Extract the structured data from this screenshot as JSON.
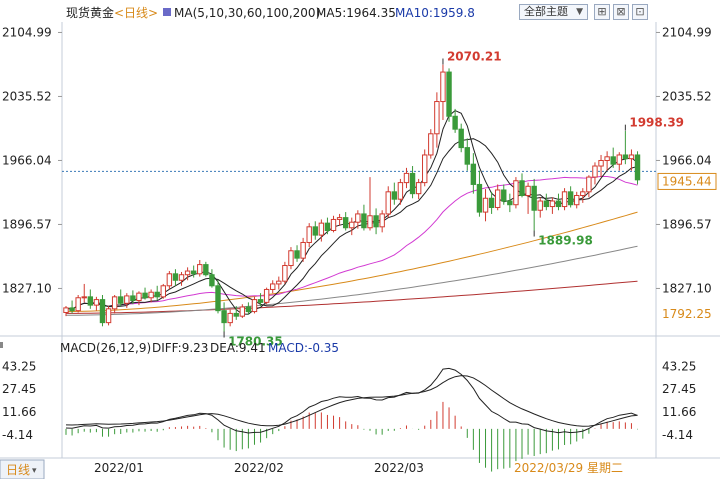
{
  "header": {
    "instrument": "现货黄金",
    "period": "<日线>",
    "ma_params": "MA(5,10,30,60,100,200)",
    "ma5": "MA5:1964.35",
    "ma10": "MA10:1959.8",
    "theme_button": "全部主题"
  },
  "macd_header": {
    "params": "MACD(26,12,9)",
    "diff": "DIFF:9.23",
    "dea": "DEA:9.41",
    "macd": "MACD:-0.35"
  },
  "footer": {
    "period_tab": "日线",
    "date_labels": [
      "2022/01",
      "2022/02",
      "2022/03"
    ],
    "current_date": "2022/03/29 星期二"
  },
  "colors": {
    "up": "#d23b30",
    "down": "#3a9a3a",
    "ma5": "#222222",
    "ma10": "#222222",
    "ma30": "#d23ad2",
    "ma60": "#d88a1a",
    "ma100": "#888888",
    "ma200": "#b03030",
    "accent_blue": "#1a3aa8"
  },
  "chart_data": {
    "type": "candlestick",
    "price_axis": {
      "ticks": [
        "2104.99",
        "2035.52",
        "1966.04",
        "1896.57",
        "1827.10"
      ],
      "ylim": [
        1782,
        2112
      ]
    },
    "last_price": "1945.44",
    "lowest_visible": "1792.25",
    "annotations": [
      {
        "label": "2070.21",
        "index": 62,
        "value": 2070.21,
        "type": "high"
      },
      {
        "label": "1998.39",
        "index": 92,
        "value": 1998.39,
        "type": "high"
      },
      {
        "label": "1889.98",
        "index": 77,
        "value": 1889.98,
        "type": "low"
      },
      {
        "label": "1780.35",
        "index": 26,
        "value": 1780.35,
        "type": "low"
      }
    ],
    "candles": [
      [
        1801,
        1808,
        1797,
        1806
      ],
      [
        1806,
        1814,
        1800,
        1803
      ],
      [
        1803,
        1820,
        1801,
        1817
      ],
      [
        1817,
        1832,
        1812,
        1818
      ],
      [
        1818,
        1826,
        1805,
        1809
      ],
      [
        1809,
        1818,
        1803,
        1815
      ],
      [
        1815,
        1820,
        1786,
        1790
      ],
      [
        1790,
        1808,
        1787,
        1805
      ],
      [
        1805,
        1820,
        1800,
        1818
      ],
      [
        1818,
        1826,
        1808,
        1811
      ],
      [
        1811,
        1822,
        1806,
        1819
      ],
      [
        1819,
        1825,
        1810,
        1814
      ],
      [
        1814,
        1824,
        1809,
        1822
      ],
      [
        1822,
        1828,
        1815,
        1817
      ],
      [
        1817,
        1826,
        1812,
        1823
      ],
      [
        1823,
        1830,
        1814,
        1818
      ],
      [
        1818,
        1832,
        1816,
        1830
      ],
      [
        1830,
        1846,
        1826,
        1843
      ],
      [
        1843,
        1848,
        1830,
        1836
      ],
      [
        1836,
        1845,
        1830,
        1842
      ],
      [
        1842,
        1850,
        1836,
        1846
      ],
      [
        1846,
        1852,
        1839,
        1843
      ],
      [
        1843,
        1858,
        1840,
        1853
      ],
      [
        1853,
        1856,
        1840,
        1842
      ],
      [
        1842,
        1848,
        1828,
        1830
      ],
      [
        1830,
        1836,
        1800,
        1803
      ],
      [
        1803,
        1812,
        1780,
        1790
      ],
      [
        1790,
        1804,
        1786,
        1800
      ],
      [
        1800,
        1808,
        1793,
        1797
      ],
      [
        1797,
        1810,
        1795,
        1807
      ],
      [
        1807,
        1812,
        1799,
        1802
      ],
      [
        1802,
        1818,
        1800,
        1815
      ],
      [
        1815,
        1822,
        1808,
        1812
      ],
      [
        1812,
        1828,
        1810,
        1826
      ],
      [
        1826,
        1836,
        1822,
        1832
      ],
      [
        1832,
        1840,
        1826,
        1835
      ],
      [
        1835,
        1856,
        1832,
        1852
      ],
      [
        1852,
        1872,
        1848,
        1868
      ],
      [
        1868,
        1874,
        1856,
        1860
      ],
      [
        1860,
        1882,
        1856,
        1877
      ],
      [
        1877,
        1898,
        1872,
        1894
      ],
      [
        1894,
        1900,
        1880,
        1885
      ],
      [
        1885,
        1902,
        1878,
        1898
      ],
      [
        1898,
        1904,
        1886,
        1890
      ],
      [
        1890,
        1906,
        1888,
        1902
      ],
      [
        1902,
        1908,
        1895,
        1904
      ],
      [
        1904,
        1910,
        1890,
        1893
      ],
      [
        1893,
        1904,
        1885,
        1899
      ],
      [
        1899,
        1912,
        1892,
        1908
      ],
      [
        1908,
        1918,
        1890,
        1893
      ],
      [
        1893,
        1948,
        1890,
        1906
      ],
      [
        1906,
        1914,
        1886,
        1894
      ],
      [
        1894,
        1912,
        1888,
        1908
      ],
      [
        1908,
        1938,
        1904,
        1932
      ],
      [
        1932,
        1942,
        1918,
        1924
      ],
      [
        1924,
        1946,
        1918,
        1942
      ],
      [
        1942,
        1958,
        1936,
        1952
      ],
      [
        1952,
        1960,
        1925,
        1930
      ],
      [
        1930,
        1946,
        1924,
        1942
      ],
      [
        1942,
        1978,
        1938,
        1972
      ],
      [
        1972,
        2000,
        1968,
        1995
      ],
      [
        1995,
        2040,
        1980,
        2030
      ],
      [
        2030,
        2070,
        2010,
        2062
      ],
      [
        2062,
        2066,
        2008,
        2014
      ],
      [
        2014,
        2022,
        1996,
        2000
      ],
      [
        2000,
        2006,
        1975,
        1980
      ],
      [
        1980,
        1990,
        1955,
        1962
      ],
      [
        1962,
        1974,
        1930,
        1940
      ],
      [
        1940,
        1955,
        1905,
        1910
      ],
      [
        1910,
        1935,
        1900,
        1925
      ],
      [
        1925,
        1932,
        1908,
        1915
      ],
      [
        1915,
        1940,
        1912,
        1934
      ],
      [
        1934,
        1940,
        1918,
        1922
      ],
      [
        1922,
        1930,
        1910,
        1918
      ],
      [
        1918,
        1948,
        1914,
        1944
      ],
      [
        1944,
        1952,
        1926,
        1928
      ],
      [
        1928,
        1942,
        1908,
        1938
      ],
      [
        1938,
        1946,
        1890,
        1912
      ],
      [
        1912,
        1926,
        1904,
        1922
      ],
      [
        1922,
        1930,
        1912,
        1916
      ],
      [
        1916,
        1926,
        1908,
        1922
      ],
      [
        1922,
        1930,
        1912,
        1916
      ],
      [
        1916,
        1936,
        1912,
        1932
      ],
      [
        1932,
        1938,
        1915,
        1918
      ],
      [
        1918,
        1932,
        1914,
        1928
      ],
      [
        1928,
        1936,
        1920,
        1932
      ],
      [
        1932,
        1950,
        1926,
        1948
      ],
      [
        1948,
        1964,
        1940,
        1960
      ],
      [
        1960,
        1972,
        1948,
        1966
      ],
      [
        1966,
        1976,
        1955,
        1970
      ],
      [
        1970,
        1980,
        1958,
        1962
      ],
      [
        1962,
        1975,
        1955,
        1972
      ],
      [
        1972,
        1998,
        1962,
        1968
      ],
      [
        1968,
        1978,
        1955,
        1972
      ],
      [
        1972,
        1976,
        1940,
        1945
      ]
    ],
    "ma_tail_values": {
      "ma60": 1910,
      "ma100": 1873,
      "ma200": 1835
    },
    "macd_axis": {
      "ticks": [
        "43.25",
        "27.45",
        "11.66",
        "-4.14"
      ],
      "ylim": [
        -16,
        49
      ]
    },
    "macd": {
      "diff_final": 9.23,
      "dea_final": 9.41,
      "macd_final": -0.35
    }
  }
}
